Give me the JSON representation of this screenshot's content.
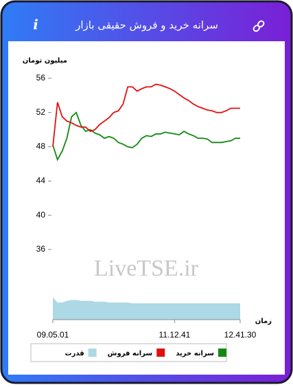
{
  "header": {
    "info_icon": "i"
  },
  "chart_data": {
    "type": "line",
    "title": "سرانه خرید و فروش حقیقی بازار",
    "watermark": "LiveTSE.ir",
    "ylabel": "میلیون تومان",
    "xlabel": "زمان",
    "categories": [
      "09.05.01",
      null,
      null,
      null,
      null,
      null,
      null,
      null,
      null,
      null,
      null,
      null,
      null,
      null,
      null,
      null,
      null,
      null,
      null,
      null,
      null,
      null,
      null,
      null,
      null,
      null,
      "11.12.41",
      null,
      null,
      null,
      null,
      null,
      null,
      null,
      null,
      null,
      null,
      null,
      null,
      null,
      "12.41.30"
    ],
    "ylim": [
      27.8,
      57
    ],
    "yticks": [
      36,
      40,
      44,
      48,
      52,
      56
    ],
    "grid": false,
    "series": [
      {
        "name": "سرانه خرید",
        "color": "#118811",
        "kind": "line",
        "values": [
          48.2,
          46.5,
          47.5,
          49,
          51.5,
          52,
          50.5,
          49.8,
          50,
          49.6,
          49.4,
          49,
          49.2,
          49,
          48.5,
          48.3,
          48,
          47.9,
          48.3,
          49,
          49.3,
          49.2,
          49.5,
          49.5,
          49.7,
          49.6,
          49.5,
          49.4,
          49.8,
          49.5,
          49.3,
          49,
          49,
          48.9,
          48.5,
          48.5,
          48.5,
          48.6,
          48.7,
          49,
          49
        ]
      },
      {
        "name": "سرانه فروش",
        "color": "#e01010",
        "kind": "line",
        "values": [
          48,
          53.2,
          51.5,
          51,
          50.8,
          50.5,
          50.3,
          50.3,
          49.8,
          50,
          50.6,
          51,
          51.4,
          52,
          52.2,
          53,
          55,
          55,
          54.5,
          54.8,
          55,
          55,
          55.3,
          55.2,
          55,
          54.8,
          54.5,
          54.1,
          53.7,
          53.4,
          53,
          52.7,
          52.5,
          52.3,
          52.2,
          52,
          52,
          52.2,
          52.5,
          52.5,
          52.5
        ]
      },
      {
        "name": "قدرت",
        "color": "#add8e6",
        "kind": "area",
        "values": [
          30.4,
          29.8,
          29.8,
          30,
          30.1,
          30.1,
          30,
          30,
          30,
          29.9,
          29.9,
          29.9,
          29.8,
          29.8,
          29.8,
          29.8,
          29.8,
          29.7,
          29.7,
          29.7,
          29.7,
          29.7,
          29.7,
          29.7,
          29.7,
          29.7,
          29.7,
          29.7,
          29.7,
          29.7,
          29.7,
          29.7,
          29.7,
          29.7,
          29.7,
          29.7,
          29.7,
          29.7,
          29.7,
          29.7,
          29.7
        ]
      }
    ]
  }
}
